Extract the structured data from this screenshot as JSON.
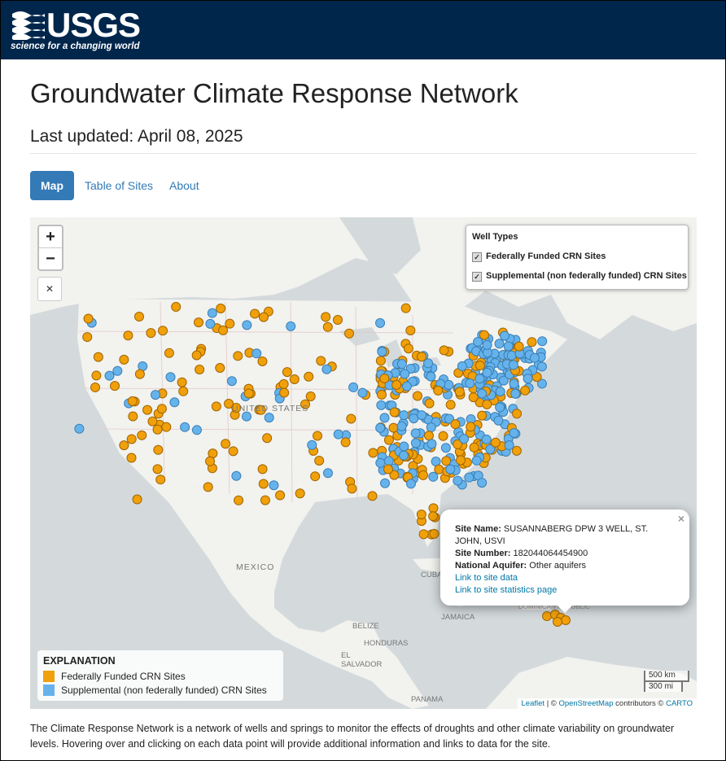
{
  "header": {
    "logo_text": "USGS",
    "logo_tagline": "science for a changing world",
    "colors": {
      "background": "#00264c",
      "text": "#ffffff"
    }
  },
  "page": {
    "title": "Groundwater Climate Response Network",
    "last_updated": "Last updated: April 08, 2025"
  },
  "tabs": [
    {
      "label": "Map",
      "active": true
    },
    {
      "label": "Table of Sites",
      "active": false
    },
    {
      "label": "About",
      "active": false
    }
  ],
  "map": {
    "zoom_in": "+",
    "zoom_out": "−",
    "reset_icon": "✕",
    "place_labels": [
      "UNITED STATES",
      "MEXICO",
      "CUBA",
      "JAMAICA",
      "BELIZE",
      "HONDURAS",
      "EL SALVADOR",
      "PANAMA",
      "DOMINICAN REPUBLIC"
    ],
    "layer_control": {
      "title": "Well Types",
      "options": [
        {
          "label": "Federally Funded CRN Sites",
          "checked": true
        },
        {
          "label": "Supplemental (non federally funded) CRN Sites",
          "checked": true
        }
      ]
    },
    "popup": {
      "close": "×",
      "site_name_label": "Site Name:",
      "site_name": "SUSANNABERG DPW 3 WELL, ST. JOHN, USVI",
      "site_number_label": "Site Number:",
      "site_number": "182044064454900",
      "aquifer_label": "National Aquifer:",
      "aquifer": "Other aquifers",
      "link_data": "Link to site data",
      "link_stats": "Link to site statistics page"
    },
    "legend": {
      "title": "EXPLANATION",
      "items": [
        {
          "label": "Federally Funded CRN Sites",
          "color": "#f0a00a"
        },
        {
          "label": "Supplemental (non federally funded) CRN Sites",
          "color": "#66b3ec"
        }
      ]
    },
    "scale": {
      "km": "500 km",
      "mi": "300 mi"
    },
    "attribution": {
      "leaflet": "Leaflet",
      "separator": "| ©",
      "osm": "OpenStreetMap",
      "contributors": "contributors ©",
      "carto": "CARTO"
    },
    "colors": {
      "water": "#d4dadc",
      "land": "#f2f2ef",
      "federal": "#f0a00a",
      "supplemental": "#66b3ec"
    }
  },
  "description": "The Climate Response Network is a network of wells and springs to monitor the effects of droughts and other climate variability on groundwater levels. Hovering over and clicking on each data point will provide additional information and links to data for the site."
}
